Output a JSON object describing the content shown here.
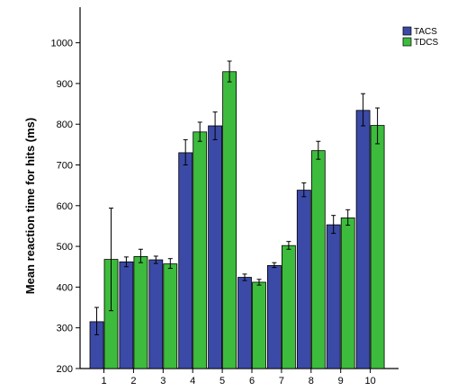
{
  "chart_data": {
    "type": "bar",
    "title": "",
    "xlabel": "",
    "ylabel": "Mean reaction time for hits (ms)",
    "categories": [
      "1",
      "2",
      "3",
      "4",
      "5",
      "6",
      "7",
      "8",
      "9",
      "10"
    ],
    "ylim": [
      200,
      1050
    ],
    "yticks": [
      200,
      300,
      400,
      500,
      600,
      700,
      800,
      900,
      1000
    ],
    "grid": false,
    "legend_position": "top-right",
    "series": [
      {
        "name": "TACS",
        "color": "#3b4aa6",
        "values": [
          315,
          462,
          467,
          730,
          796,
          424,
          453,
          638,
          553,
          834
        ],
        "err_low": [
          283,
          450,
          458,
          700,
          762,
          416,
          448,
          622,
          532,
          796
        ],
        "err_high": [
          350,
          474,
          476,
          762,
          830,
          432,
          460,
          656,
          576,
          875
        ]
      },
      {
        "name": "TDCS",
        "color": "#3dbb3d",
        "values": [
          468,
          475,
          457,
          781,
          929,
          412,
          502,
          735,
          570,
          797
        ],
        "err_low": [
          342,
          460,
          446,
          758,
          904,
          405,
          493,
          714,
          552,
          752
        ],
        "err_high": [
          594,
          493,
          470,
          805,
          955,
          419,
          512,
          758,
          590,
          840
        ]
      }
    ]
  }
}
